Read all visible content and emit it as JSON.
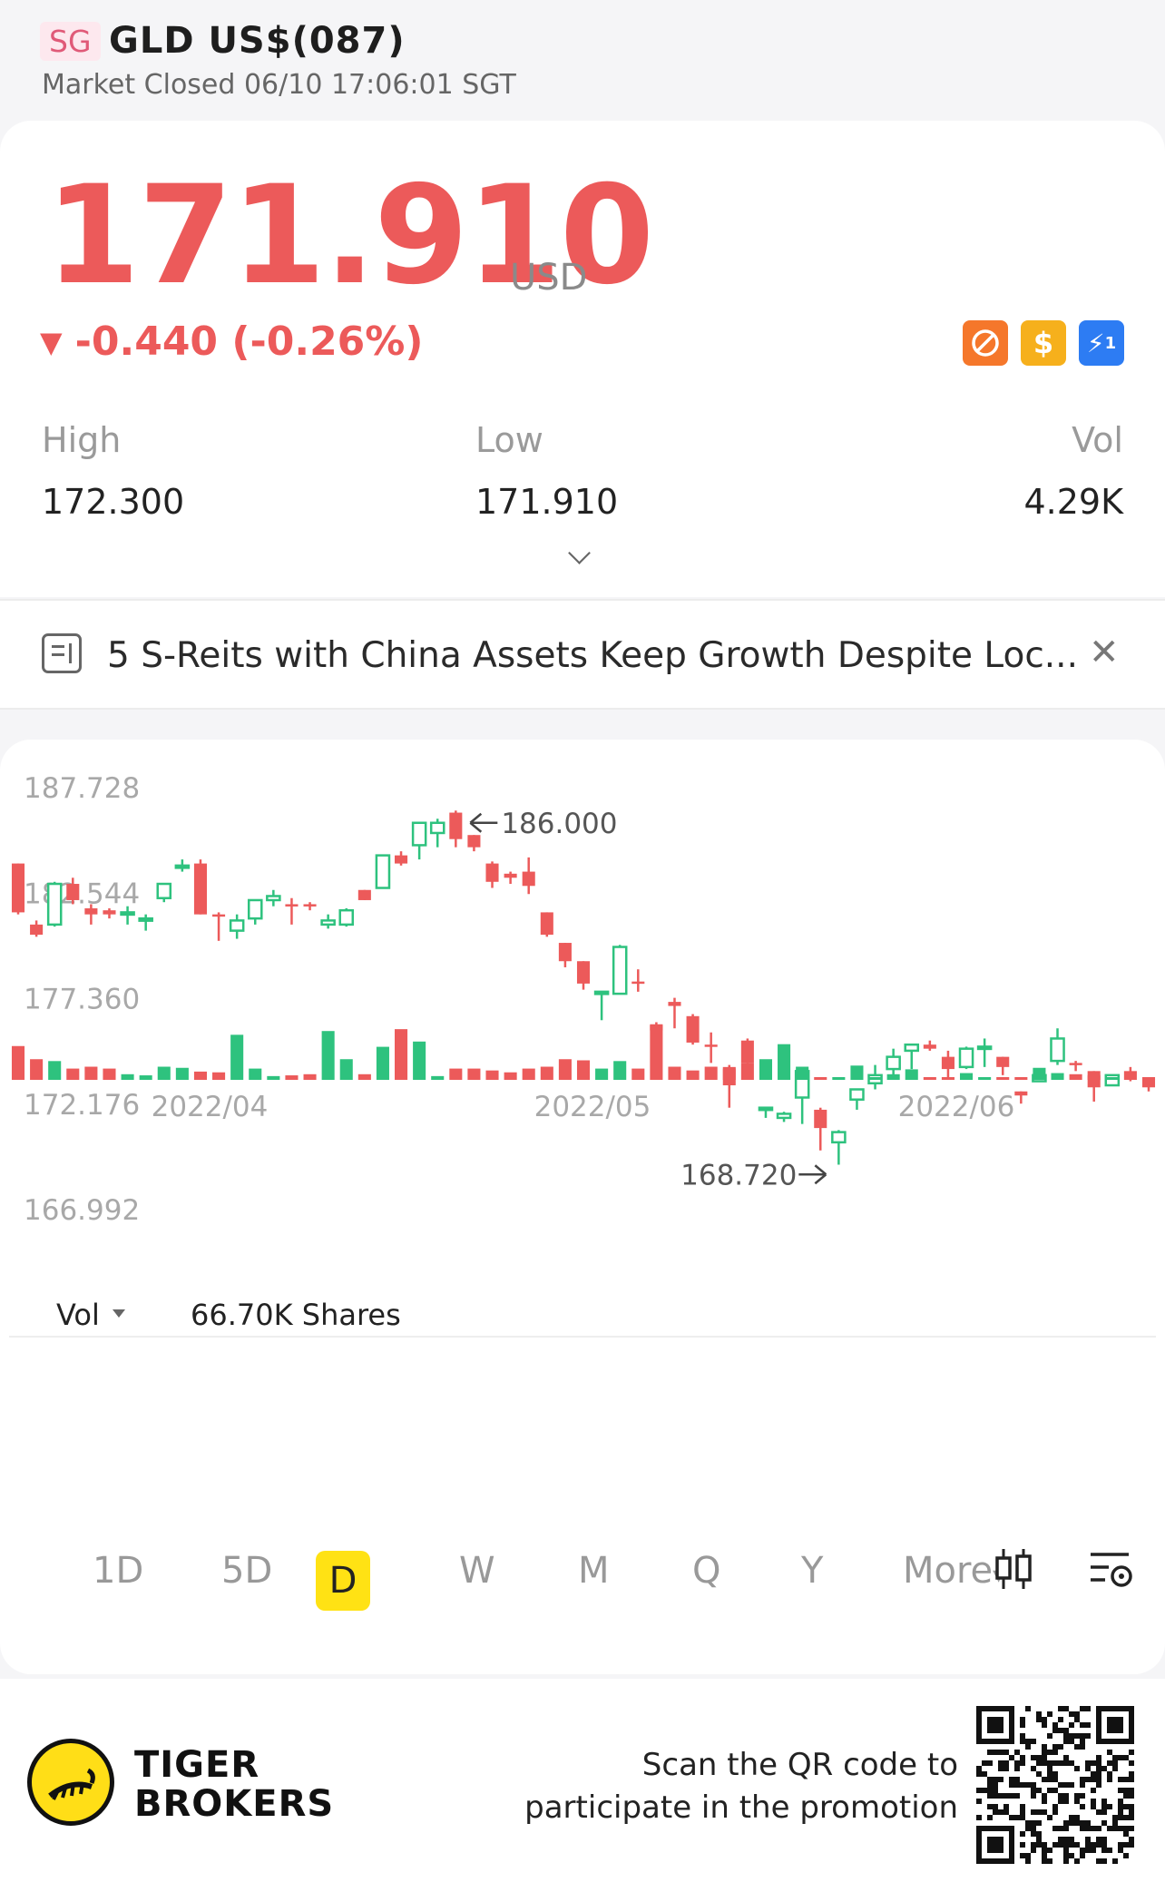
{
  "header": {
    "market_badge": "SG",
    "title": "GLD US$(087)",
    "status": "Market Closed 06/10 17:06:01 SGT"
  },
  "quote": {
    "price": "171.910",
    "currency": "USD",
    "change": "-0.440 (-0.26%)",
    "direction_icon": "down-triangle-icon",
    "stats": {
      "high_label": "High",
      "high_value": "172.300",
      "low_label": "Low",
      "low_value": "171.910",
      "vol_label": "Vol",
      "vol_value": "4.29K"
    },
    "badge_icons": [
      "no-fee-icon",
      "dollar-icon",
      "flash-level1-icon"
    ],
    "badge_text": {
      "dollar": "$",
      "level": "1"
    }
  },
  "news": {
    "headline": "5 S-Reits with China Assets Keep Growth Despite Loc..."
  },
  "chart_data": {
    "type": "candlestick",
    "y_ticks": [
      "187.728",
      "182.544",
      "177.360",
      "172.176",
      "166.992"
    ],
    "ylim": [
      166.992,
      187.728
    ],
    "x_ticks": [
      "2022/04",
      "2022/05",
      "2022/06"
    ],
    "max_annotation": "186.000",
    "min_annotation": "168.720",
    "volume_label": "Vol",
    "volume_value": "66.70K Shares",
    "up_color": "#2ec27e",
    "down_color": "#ec5a5a",
    "candles": [
      [
        184.0,
        184.0,
        181.5,
        181.6
      ],
      [
        181.0,
        181.2,
        180.4,
        180.5
      ],
      [
        181.0,
        183.1,
        180.9,
        183.0
      ],
      [
        183.0,
        183.3,
        182.0,
        182.2
      ],
      [
        181.8,
        182.0,
        181.0,
        181.5
      ],
      [
        181.7,
        181.8,
        181.3,
        181.5
      ],
      [
        181.5,
        181.9,
        181.0,
        181.6
      ],
      [
        181.2,
        181.5,
        180.7,
        181.3
      ],
      [
        182.3,
        182.9,
        182.1,
        183.0
      ],
      [
        183.8,
        184.2,
        183.6,
        183.9
      ],
      [
        184.0,
        184.2,
        181.5,
        181.5
      ],
      [
        181.5,
        181.6,
        180.2,
        181.4
      ],
      [
        180.7,
        181.5,
        180.3,
        181.2
      ],
      [
        181.3,
        182.1,
        181.0,
        182.2
      ],
      [
        182.2,
        182.7,
        181.9,
        182.4
      ],
      [
        182.0,
        182.3,
        181.0,
        181.9
      ],
      [
        182.0,
        182.1,
        181.7,
        181.9
      ],
      [
        181.0,
        181.5,
        180.8,
        181.2
      ],
      [
        181.0,
        181.8,
        180.9,
        181.7
      ],
      [
        182.7,
        182.7,
        182.2,
        182.2
      ],
      [
        182.8,
        184.4,
        182.8,
        184.4
      ],
      [
        184.4,
        184.6,
        183.9,
        184.0
      ],
      [
        184.9,
        185.9,
        184.2,
        186.0
      ],
      [
        185.5,
        186.2,
        184.8,
        186.0
      ],
      [
        186.5,
        186.6,
        184.8,
        185.2
      ],
      [
        185.4,
        185.4,
        184.6,
        184.8
      ],
      [
        184.0,
        184.1,
        182.8,
        183.1
      ],
      [
        183.5,
        183.6,
        183.0,
        183.3
      ],
      [
        183.6,
        184.3,
        182.5,
        182.9
      ],
      [
        181.6,
        181.6,
        180.4,
        180.5
      ],
      [
        180.1,
        180.1,
        178.9,
        179.2
      ],
      [
        179.2,
        179.2,
        177.8,
        178.1
      ],
      [
        177.6,
        177.6,
        176.3,
        177.7
      ],
      [
        177.6,
        180.0,
        177.6,
        179.9
      ],
      [
        178.2,
        178.8,
        177.7,
        178.1
      ],
      [
        176.1,
        176.2,
        175.3,
        175.8
      ],
      [
        177.2,
        177.4,
        175.9,
        177.0
      ],
      [
        176.5,
        176.6,
        175.1,
        175.2
      ],
      [
        175.1,
        175.7,
        174.2,
        175.0
      ],
      [
        174.0,
        174.1,
        172.0,
        173.1
      ],
      [
        175.3,
        175.4,
        174.2,
        174.2
      ],
      [
        172.0,
        172.0,
        171.5,
        172.0
      ],
      [
        171.5,
        171.8,
        171.3,
        171.7
      ],
      [
        172.5,
        173.8,
        171.2,
        173.8
      ],
      [
        171.9,
        172.0,
        169.9,
        171.0
      ],
      [
        170.3,
        170.9,
        169.2,
        170.8
      ],
      [
        172.4,
        172.8,
        171.9,
        172.9
      ],
      [
        173.2,
        174.1,
        172.9,
        173.6
      ],
      [
        173.9,
        174.9,
        173.6,
        174.5
      ],
      [
        174.8,
        175.0,
        173.9,
        175.1
      ],
      [
        175.1,
        175.3,
        174.8,
        174.9
      ],
      [
        174.5,
        174.8,
        173.5,
        173.9
      ],
      [
        174.0,
        175.0,
        173.9,
        174.9
      ],
      [
        174.9,
        175.4,
        174.0,
        175.0
      ],
      [
        174.5,
        174.5,
        173.6,
        174.0
      ],
      [
        172.8,
        172.8,
        172.2,
        172.6
      ],
      [
        173.3,
        173.4,
        173.3,
        173.6
      ],
      [
        174.3,
        175.9,
        174.1,
        175.4
      ],
      [
        174.2,
        174.3,
        173.8,
        174.1
      ],
      [
        173.8,
        173.8,
        172.3,
        173.0
      ],
      [
        173.1,
        173.5,
        173.1,
        173.6
      ],
      [
        173.8,
        174.0,
        173.3,
        173.5
      ],
      [
        173.4,
        173.5,
        172.8,
        173.0
      ]
    ],
    "volumes": [
      0.9,
      0.55,
      0.5,
      0.3,
      0.35,
      0.3,
      0.15,
      0.12,
      0.35,
      0.32,
      0.22,
      0.2,
      1.2,
      0.3,
      0.1,
      0.12,
      0.15,
      1.3,
      0.55,
      0.15,
      0.88,
      1.35,
      1.02,
      0.1,
      0.3,
      0.3,
      0.25,
      0.2,
      0.3,
      0.35,
      0.55,
      0.52,
      0.3,
      0.5,
      0.3,
      1.45,
      0.35,
      0.25,
      0.35,
      0.3,
      0.45,
      0.55,
      0.95,
      0.35,
      0.05,
      0.05,
      0.38,
      0.05,
      0.15,
      0.28,
      0.05,
      0.05,
      0.18,
      0.05,
      0.05,
      0.05,
      0.32,
      0.18,
      0.15,
      0.12,
      0.05,
      0.05,
      0.05
    ]
  },
  "timeframes": [
    "1D",
    "5D",
    "D",
    "W",
    "M",
    "Q",
    "Y",
    "More"
  ],
  "active_timeframe": "D",
  "chart_tools": [
    "candlestick-type-icon",
    "chart-settings-icon"
  ],
  "promo": {
    "brand_line1": "TIGER",
    "brand_line2": "BROKERS",
    "text_line1": "Scan the QR code to",
    "text_line2": "participate in the promotion"
  }
}
